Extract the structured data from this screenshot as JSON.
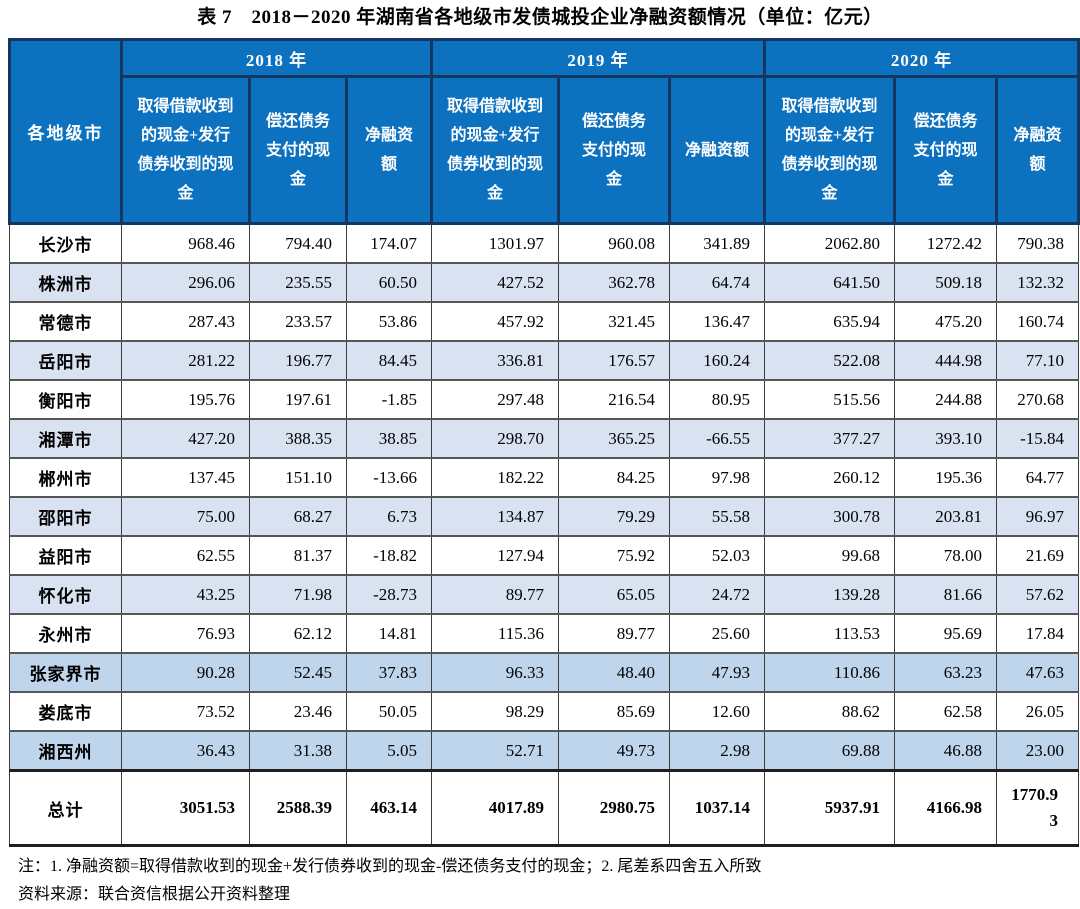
{
  "title": "表 7　2018－2020 年湖南省各地级市发债城投企业净融资额情况（单位：亿元）",
  "colors": {
    "header_bg": "#0C71BF",
    "header_border": "#15365E",
    "stripe_light": "#D8E2F1",
    "stripe_medium": "#BFD5EC",
    "header_text": "#FFFFFF",
    "body_text": "#000000"
  },
  "table": {
    "city_header": "各地级市",
    "year_groups": [
      {
        "label": "2018 年"
      },
      {
        "label": "2019 年"
      },
      {
        "label": "2020 年"
      }
    ],
    "sub_headers": [
      "取得借款收到\n的现金+发行\n债券收到的现\n金",
      "偿还债务\n支付的现\n金",
      "净融资\n额",
      "取得借款收到\n的现金+发行\n债券收到的现\n金",
      "偿还债务\n支付的现\n金",
      "净融资额",
      "取得借款收到\n的现金+发行\n债券收到的现\n金",
      "偿还债务\n支付的现\n金",
      "净融资\n额"
    ],
    "rows": [
      {
        "city": "长沙市",
        "shade": "white",
        "values": [
          "968.46",
          "794.40",
          "174.07",
          "1301.97",
          "960.08",
          "341.89",
          "2062.80",
          "1272.42",
          "790.38"
        ]
      },
      {
        "city": "株洲市",
        "shade": "light",
        "values": [
          "296.06",
          "235.55",
          "60.50",
          "427.52",
          "362.78",
          "64.74",
          "641.50",
          "509.18",
          "132.32"
        ]
      },
      {
        "city": "常德市",
        "shade": "white",
        "values": [
          "287.43",
          "233.57",
          "53.86",
          "457.92",
          "321.45",
          "136.47",
          "635.94",
          "475.20",
          "160.74"
        ]
      },
      {
        "city": "岳阳市",
        "shade": "light",
        "values": [
          "281.22",
          "196.77",
          "84.45",
          "336.81",
          "176.57",
          "160.24",
          "522.08",
          "444.98",
          "77.10"
        ]
      },
      {
        "city": "衡阳市",
        "shade": "white",
        "values": [
          "195.76",
          "197.61",
          "-1.85",
          "297.48",
          "216.54",
          "80.95",
          "515.56",
          "244.88",
          "270.68"
        ]
      },
      {
        "city": "湘潭市",
        "shade": "light",
        "values": [
          "427.20",
          "388.35",
          "38.85",
          "298.70",
          "365.25",
          "-66.55",
          "377.27",
          "393.10",
          "-15.84"
        ]
      },
      {
        "city": "郴州市",
        "shade": "white",
        "values": [
          "137.45",
          "151.10",
          "-13.66",
          "182.22",
          "84.25",
          "97.98",
          "260.12",
          "195.36",
          "64.77"
        ]
      },
      {
        "city": "邵阳市",
        "shade": "light",
        "values": [
          "75.00",
          "68.27",
          "6.73",
          "134.87",
          "79.29",
          "55.58",
          "300.78",
          "203.81",
          "96.97"
        ]
      },
      {
        "city": "益阳市",
        "shade": "white",
        "values": [
          "62.55",
          "81.37",
          "-18.82",
          "127.94",
          "75.92",
          "52.03",
          "99.68",
          "78.00",
          "21.69"
        ]
      },
      {
        "city": "怀化市",
        "shade": "light",
        "values": [
          "43.25",
          "71.98",
          "-28.73",
          "89.77",
          "65.05",
          "24.72",
          "139.28",
          "81.66",
          "57.62"
        ]
      },
      {
        "city": "永州市",
        "shade": "white",
        "values": [
          "76.93",
          "62.12",
          "14.81",
          "115.36",
          "89.77",
          "25.60",
          "113.53",
          "95.69",
          "17.84"
        ]
      },
      {
        "city": "张家界市",
        "shade": "medium",
        "values": [
          "90.28",
          "52.45",
          "37.83",
          "96.33",
          "48.40",
          "47.93",
          "110.86",
          "63.23",
          "47.63"
        ]
      },
      {
        "city": "娄底市",
        "shade": "white",
        "values": [
          "73.52",
          "23.46",
          "50.05",
          "98.29",
          "85.69",
          "12.60",
          "88.62",
          "62.58",
          "26.05"
        ]
      },
      {
        "city": "湘西州",
        "shade": "medium",
        "values": [
          "36.43",
          "31.38",
          "5.05",
          "52.71",
          "49.73",
          "2.98",
          "69.88",
          "46.88",
          "23.00"
        ]
      }
    ],
    "total_row": {
      "label": "总计",
      "values": [
        "3051.53",
        "2588.39",
        "463.14",
        "4017.89",
        "2980.75",
        "1037.14",
        "5937.91",
        "4166.98",
        "1770.93"
      ]
    }
  },
  "notes": [
    "注：1. 净融资额=取得借款收到的现金+发行债券收到的现金-偿还债务支付的现金；2. 尾差系四舍五入所致",
    "资料来源：联合资信根据公开资料整理"
  ]
}
